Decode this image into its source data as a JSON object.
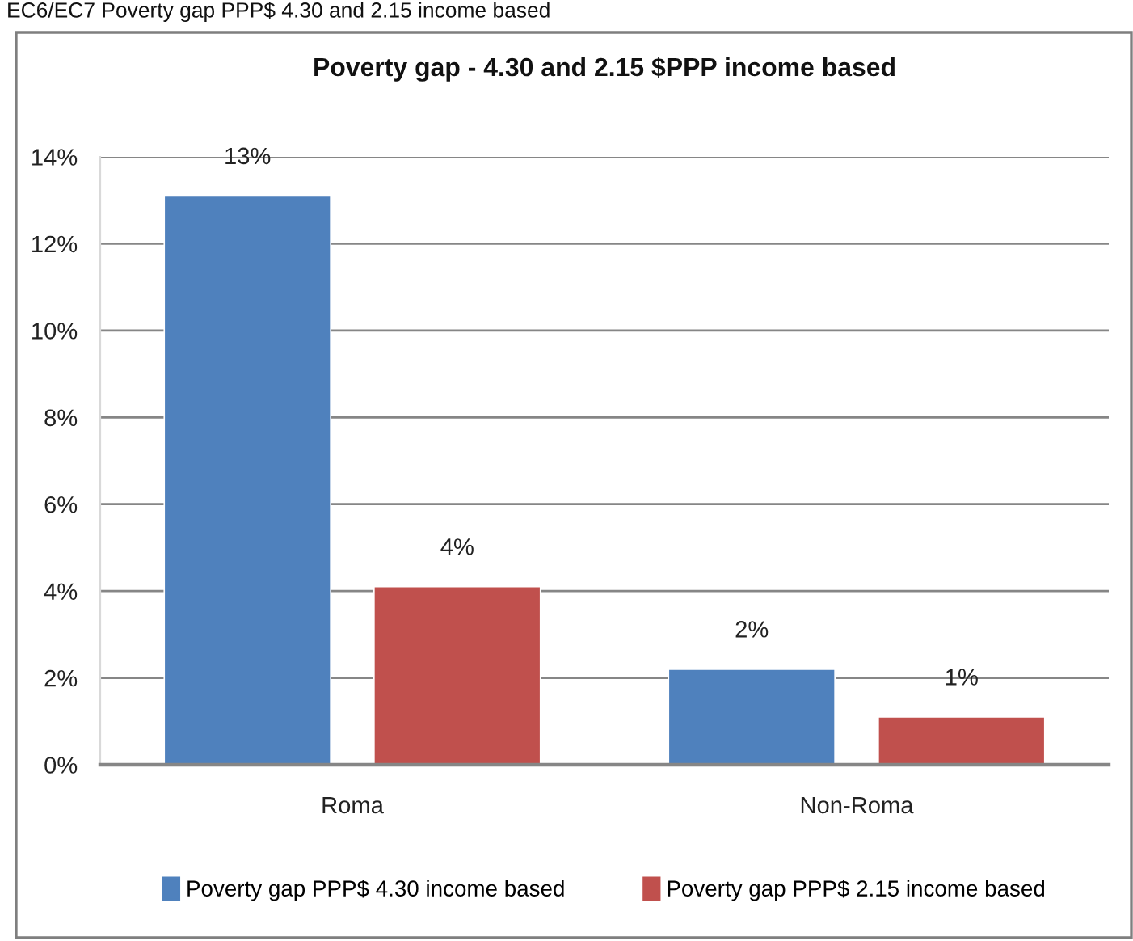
{
  "chart_data": {
    "type": "bar",
    "title": "Poverty gap - 4.30 and 2.15 $PPP income based",
    "annotations": [
      "EC6/EC7 Poverty gap PPP$ 4.30 and 2.15 income based"
    ],
    "categories": [
      "Roma",
      "Non-Roma"
    ],
    "series": [
      {
        "name": "Poverty gap PPP$ 4.30 income based",
        "color": "#4f81bd",
        "values": [
          13.1,
          2.2
        ],
        "value_labels": [
          "13%",
          "2%"
        ]
      },
      {
        "name": "Poverty gap PPP$ 2.15 income based",
        "color": "#c0504d",
        "values": [
          4.1,
          1.1
        ],
        "value_labels": [
          "4%",
          "1%"
        ]
      }
    ],
    "ylim": [
      0,
      14
    ],
    "yticks": [
      {
        "value": 0,
        "label": "0%"
      },
      {
        "value": 2,
        "label": "2%"
      },
      {
        "value": 4,
        "label": "4%"
      },
      {
        "value": 6,
        "label": "6%"
      },
      {
        "value": 8,
        "label": "8%"
      },
      {
        "value": 10,
        "label": "10%"
      },
      {
        "value": 12,
        "label": "12%"
      },
      {
        "value": 14,
        "label": "14%"
      }
    ],
    "grid": "y",
    "legend": "bottom"
  }
}
